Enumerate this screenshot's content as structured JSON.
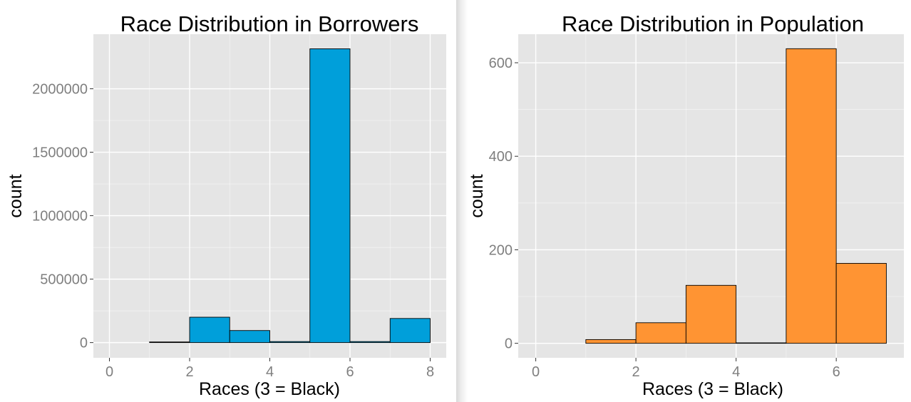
{
  "colors": {
    "panel": "#E5E5E5",
    "grid": "#FFFFFF",
    "tick": "#7F7F7F",
    "bar_edge": "#000000"
  },
  "chart_data": [
    {
      "type": "bar",
      "title": "Race Distribution in Borrowers",
      "xlabel": "Races (3 = Black)",
      "ylabel": "count",
      "fill": "#009FDA",
      "xlim": [
        -0.4,
        8.4
      ],
      "ylim": [
        -120000,
        2430000
      ],
      "x_ticks": [
        0,
        2,
        4,
        6,
        8
      ],
      "y_ticks": [
        0,
        500000,
        1000000,
        1500000,
        2000000
      ],
      "bins": [
        {
          "start": 0,
          "end": 1,
          "value": 0
        },
        {
          "start": 1,
          "end": 2,
          "value": 5000
        },
        {
          "start": 2,
          "end": 3,
          "value": 200000
        },
        {
          "start": 3,
          "end": 4,
          "value": 95000
        },
        {
          "start": 4,
          "end": 5,
          "value": 8000
        },
        {
          "start": 5,
          "end": 6,
          "value": 2315000
        },
        {
          "start": 6,
          "end": 7,
          "value": 8000
        },
        {
          "start": 7,
          "end": 8,
          "value": 190000
        }
      ]
    },
    {
      "type": "bar",
      "title": "Race Distribution in Population",
      "xlabel": "Races (3 = Black)",
      "ylabel": "count",
      "fill": "#FF9433",
      "xlim": [
        -0.35,
        7.35
      ],
      "ylim": [
        -31,
        661
      ],
      "x_ticks": [
        0,
        2,
        4,
        6
      ],
      "y_ticks": [
        0,
        200,
        400,
        600
      ],
      "bins": [
        {
          "start": 0,
          "end": 1,
          "value": 0
        },
        {
          "start": 1,
          "end": 2,
          "value": 8
        },
        {
          "start": 2,
          "end": 3,
          "value": 44
        },
        {
          "start": 3,
          "end": 4,
          "value": 124
        },
        {
          "start": 4,
          "end": 5,
          "value": 1
        },
        {
          "start": 5,
          "end": 6,
          "value": 630
        },
        {
          "start": 6,
          "end": 7,
          "value": 171
        }
      ]
    }
  ]
}
